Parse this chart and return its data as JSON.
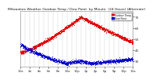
{
  "title": "Milwaukee Weather Outdoor Temp / Dew Point by Minute (24 Hours) (Alternate)",
  "background_color": "#ffffff",
  "plot_bg_color": "#ffffff",
  "grid_color": "#cccccc",
  "temp_color": "#dd0000",
  "dew_color": "#0000cc",
  "legend_temp_color": "#dd0000",
  "legend_dew_color": "#0000cc",
  "ylim": [
    25,
    75
  ],
  "yticks": [
    30,
    40,
    50,
    60,
    70
  ],
  "ytick_labels": [
    "30",
    "40",
    "50",
    "60",
    "70"
  ],
  "tick_fontsize": 3.0,
  "title_fontsize": 3.2,
  "dot_size": 0.4
}
